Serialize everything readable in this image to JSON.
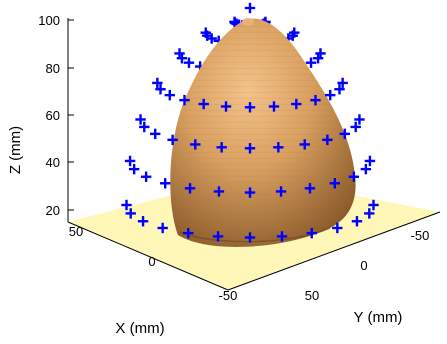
{
  "chart_data": {
    "type": "scatter",
    "projection": "3d",
    "title": "",
    "xlabel": "X (mm)",
    "ylabel": "Y (mm)",
    "zlabel": "Z (mm)",
    "xticks": [
      "50",
      "0",
      "-50"
    ],
    "yticks": [
      "50",
      "0",
      "-50"
    ],
    "zticks": [
      "100",
      "80",
      "60",
      "40",
      "20"
    ],
    "xlim": [
      -60,
      60
    ],
    "ylim": [
      -60,
      60
    ],
    "zlim": [
      15,
      105
    ],
    "grid": false,
    "legend": "none",
    "series": [
      {
        "marker": "+",
        "color": "#0000ff"
      },
      {
        "surface": "dome",
        "color": "#d49a5a"
      }
    ],
    "base_plane_color": "#fff7b8",
    "note_values": "Marker grid: approx. 13 columns x 7 rows of sensor points arranged on a hemispherical shell around the head surface."
  }
}
